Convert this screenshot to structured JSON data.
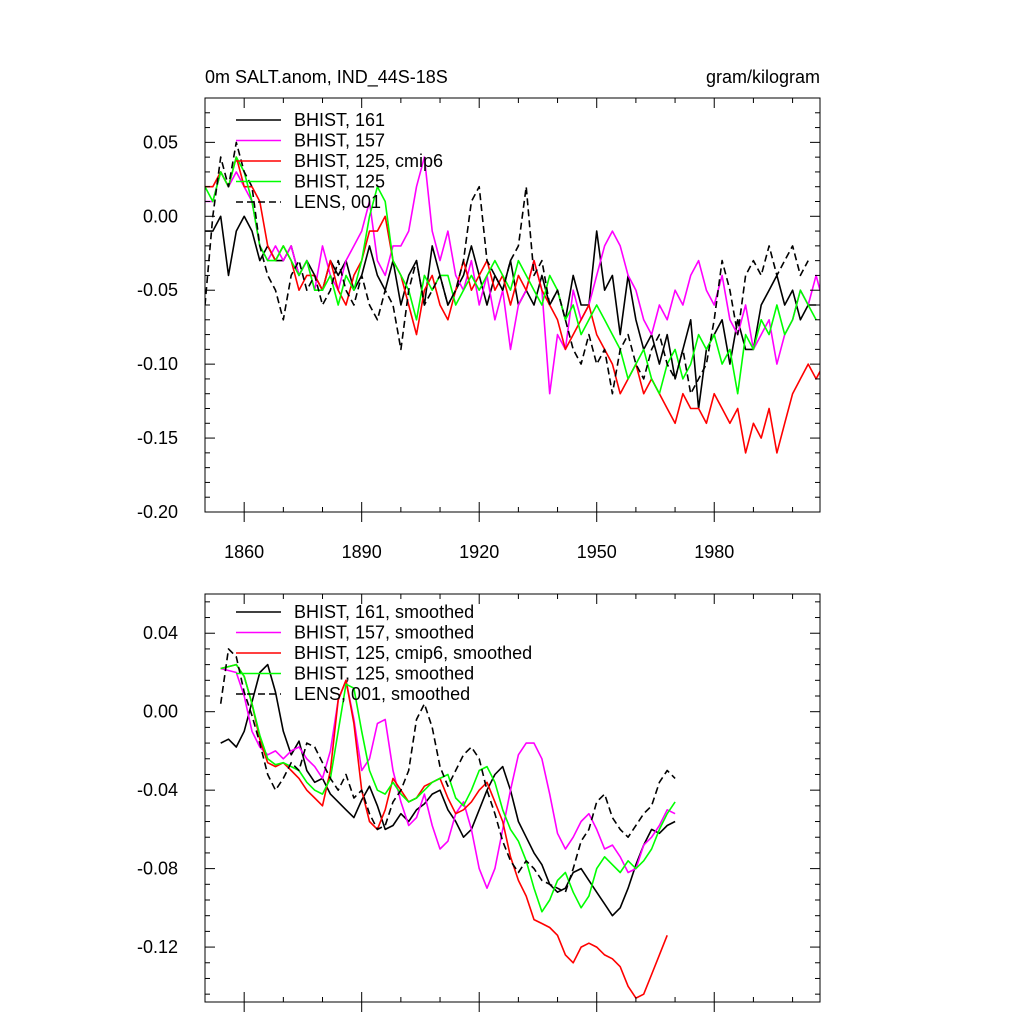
{
  "chart_data": [
    {
      "type": "line",
      "title": "0m SALT.anom, IND_44S-18S",
      "units": "gram/kilogram",
      "xlabel": "",
      "ylabel": "",
      "xlim": [
        1850,
        2007
      ],
      "ylim": [
        -0.2,
        0.08
      ],
      "yticks": [
        0.05,
        0.0,
        -0.05,
        -0.1,
        -0.15,
        -0.2
      ],
      "ytick_labels": [
        "0.05",
        "0.00",
        "-0.05",
        "-0.10",
        "-0.15",
        "-0.20"
      ],
      "xticks": [
        1860,
        1890,
        1920,
        1950,
        1980
      ],
      "xtick_labels": [
        "1860",
        "1890",
        "1920",
        "1950",
        "1980"
      ],
      "x_start": 1850,
      "x_step": 2,
      "legend_position": "top-left",
      "series": [
        {
          "name": "BHIST, 161",
          "color": "#000000",
          "dash": "solid",
          "values": [
            -0.01,
            -0.01,
            0.0,
            -0.04,
            -0.01,
            0.0,
            -0.01,
            -0.03,
            -0.02,
            -0.03,
            -0.03,
            -0.02,
            -0.04,
            -0.03,
            -0.04,
            -0.05,
            -0.03,
            -0.04,
            -0.03,
            -0.05,
            -0.04,
            -0.02,
            -0.04,
            -0.05,
            -0.03,
            -0.06,
            -0.04,
            -0.03,
            -0.06,
            -0.02,
            -0.04,
            -0.06,
            -0.05,
            -0.04,
            -0.02,
            -0.04,
            -0.06,
            -0.04,
            -0.05,
            -0.03,
            -0.06,
            -0.05,
            -0.06,
            -0.04,
            -0.06,
            -0.05,
            -0.07,
            -0.04,
            -0.06,
            -0.06,
            -0.01,
            -0.05,
            -0.04,
            -0.08,
            -0.04,
            -0.07,
            -0.09,
            -0.08,
            -0.1,
            -0.08,
            -0.11,
            -0.09,
            -0.07,
            -0.13,
            -0.09,
            -0.08,
            -0.07,
            -0.1,
            -0.07,
            -0.09,
            -0.09,
            -0.06,
            -0.05,
            -0.04,
            -0.06,
            -0.05,
            -0.07,
            -0.06,
            -0.06
          ]
        },
        {
          "name": "BHIST, 157",
          "color": "#ff00ff",
          "dash": "solid",
          "values": [
            0.01,
            0.01,
            0.03,
            0.02,
            0.03,
            0.02,
            0.01,
            -0.02,
            -0.03,
            -0.02,
            -0.03,
            -0.02,
            -0.04,
            -0.03,
            -0.05,
            -0.02,
            -0.04,
            -0.05,
            -0.03,
            -0.02,
            -0.01,
            0.01,
            -0.03,
            -0.04,
            -0.02,
            -0.02,
            -0.01,
            0.02,
            0.04,
            -0.01,
            -0.03,
            -0.01,
            -0.04,
            -0.05,
            -0.03,
            -0.06,
            -0.04,
            -0.07,
            -0.05,
            -0.09,
            -0.06,
            -0.05,
            -0.03,
            -0.05,
            -0.12,
            -0.08,
            -0.09,
            -0.05,
            -0.07,
            -0.06,
            -0.04,
            -0.02,
            -0.01,
            -0.02,
            -0.04,
            -0.05,
            -0.07,
            -0.08,
            -0.06,
            -0.07,
            -0.05,
            -0.06,
            -0.04,
            -0.03,
            -0.05,
            -0.06,
            -0.04,
            -0.07,
            -0.08,
            -0.06,
            -0.09,
            -0.08,
            -0.07,
            -0.1,
            -0.08,
            -0.07,
            -0.05,
            -0.06,
            -0.04,
            -0.06
          ]
        },
        {
          "name": "BHIST, 125, cmip6",
          "color": "#ff0000",
          "dash": "solid",
          "values": [
            0.02,
            0.02,
            0.03,
            0.02,
            0.04,
            0.02,
            0.02,
            0.01,
            -0.02,
            -0.03,
            -0.02,
            -0.03,
            -0.05,
            -0.04,
            -0.04,
            -0.05,
            -0.03,
            -0.05,
            -0.06,
            -0.04,
            -0.03,
            -0.01,
            -0.01,
            0.0,
            -0.03,
            -0.04,
            -0.06,
            -0.08,
            -0.05,
            -0.04,
            -0.06,
            -0.07,
            -0.05,
            -0.03,
            -0.05,
            -0.04,
            -0.03,
            -0.05,
            -0.04,
            -0.06,
            -0.04,
            -0.05,
            -0.03,
            -0.05,
            -0.06,
            -0.07,
            -0.09,
            -0.08,
            -0.07,
            -0.06,
            -0.08,
            -0.09,
            -0.1,
            -0.12,
            -0.11,
            -0.1,
            -0.12,
            -0.11,
            -0.12,
            -0.13,
            -0.14,
            -0.12,
            -0.13,
            -0.13,
            -0.14,
            -0.12,
            -0.13,
            -0.14,
            -0.13,
            -0.16,
            -0.14,
            -0.15,
            -0.13,
            -0.16,
            -0.14,
            -0.12,
            -0.11,
            -0.1,
            -0.11,
            -0.1
          ]
        },
        {
          "name": "BHIST, 125",
          "color": "#00ff00",
          "dash": "solid",
          "values": [
            0.02,
            0.01,
            0.03,
            0.02,
            0.04,
            0.03,
            0.01,
            -0.02,
            -0.03,
            -0.03,
            -0.02,
            -0.03,
            -0.04,
            -0.03,
            -0.05,
            -0.05,
            -0.04,
            -0.06,
            -0.04,
            -0.05,
            -0.03,
            0.0,
            0.02,
            0.01,
            -0.03,
            -0.04,
            -0.05,
            -0.07,
            -0.04,
            -0.05,
            -0.04,
            -0.04,
            -0.06,
            -0.05,
            -0.04,
            -0.05,
            -0.04,
            -0.03,
            -0.04,
            -0.05,
            -0.03,
            -0.04,
            -0.05,
            -0.06,
            -0.04,
            -0.05,
            -0.07,
            -0.06,
            -0.08,
            -0.07,
            -0.06,
            -0.07,
            -0.08,
            -0.09,
            -0.11,
            -0.1,
            -0.09,
            -0.11,
            -0.12,
            -0.1,
            -0.09,
            -0.11,
            -0.1,
            -0.08,
            -0.09,
            -0.08,
            -0.1,
            -0.09,
            -0.12,
            -0.08,
            -0.09,
            -0.07,
            -0.08,
            -0.06,
            -0.08,
            -0.07,
            -0.05,
            -0.06,
            -0.07
          ]
        },
        {
          "name": "LENS, 001",
          "color": "#000000",
          "dash": "dashed",
          "values": [
            -0.06,
            0.0,
            0.04,
            0.02,
            0.05,
            0.03,
            0.02,
            -0.02,
            -0.04,
            -0.05,
            -0.07,
            -0.04,
            -0.03,
            -0.05,
            -0.04,
            -0.06,
            -0.05,
            -0.03,
            -0.05,
            -0.06,
            -0.04,
            -0.06,
            -0.07,
            -0.05,
            -0.06,
            -0.09,
            -0.05,
            -0.03,
            -0.06,
            -0.05,
            -0.04,
            -0.06,
            -0.05,
            -0.03,
            0.01,
            0.02,
            -0.03,
            -0.04,
            -0.05,
            -0.03,
            -0.02,
            0.02,
            -0.04,
            -0.03,
            -0.06,
            -0.05,
            -0.07,
            -0.09,
            -0.1,
            -0.08,
            -0.1,
            -0.09,
            -0.12,
            -0.09,
            -0.08,
            -0.1,
            -0.11,
            -0.09,
            -0.08,
            -0.1,
            -0.11,
            -0.09,
            -0.12,
            -0.11,
            -0.1,
            -0.07,
            -0.03,
            -0.05,
            -0.08,
            -0.04,
            -0.03,
            -0.04,
            -0.02,
            -0.04,
            -0.03,
            -0.02,
            -0.04,
            -0.03
          ]
        }
      ]
    },
    {
      "type": "line",
      "title": "",
      "xlabel": "",
      "ylabel": "",
      "xlim": [
        1850,
        2007
      ],
      "ylim": [
        -0.148,
        0.06
      ],
      "yticks": [
        0.04,
        0.0,
        -0.04,
        -0.08,
        -0.12
      ],
      "ytick_labels": [
        "0.04",
        "0.00",
        "-0.04",
        "-0.08",
        "-0.12"
      ],
      "xticks": [
        1860,
        1890,
        1920,
        1950,
        1980
      ],
      "x_start": 1854,
      "x_step": 2,
      "legend_position": "top-left",
      "series": [
        {
          "name": "BHIST, 161, smoothed",
          "color": "#000000",
          "dash": "solid",
          "values": [
            -0.016,
            -0.014,
            -0.018,
            -0.01,
            0.005,
            0.02,
            0.024,
            0.01,
            -0.01,
            -0.022,
            -0.015,
            -0.03,
            -0.036,
            -0.034,
            -0.042,
            -0.046,
            -0.05,
            -0.054,
            -0.045,
            -0.038,
            -0.048,
            -0.06,
            -0.058,
            -0.052,
            -0.056,
            -0.05,
            -0.047,
            -0.042,
            -0.04,
            -0.05,
            -0.056,
            -0.064,
            -0.06,
            -0.05,
            -0.04,
            -0.032,
            -0.028,
            -0.04,
            -0.056,
            -0.064,
            -0.072,
            -0.078,
            -0.088,
            -0.092,
            -0.09,
            -0.082,
            -0.08,
            -0.086,
            -0.092,
            -0.098,
            -0.104,
            -0.1,
            -0.09,
            -0.078,
            -0.068,
            -0.06,
            -0.062,
            -0.058,
            -0.056
          ]
        },
        {
          "name": "BHIST, 157, smoothed",
          "color": "#ff00ff",
          "dash": "solid",
          "values": [
            0.022,
            0.021,
            0.02,
            0.008,
            -0.01,
            -0.018,
            -0.022,
            -0.02,
            -0.024,
            -0.02,
            -0.018,
            -0.024,
            -0.028,
            -0.034,
            -0.02,
            0.006,
            0.016,
            -0.004,
            -0.03,
            -0.024,
            -0.006,
            -0.004,
            -0.03,
            -0.046,
            -0.058,
            -0.054,
            -0.042,
            -0.058,
            -0.07,
            -0.066,
            -0.052,
            -0.046,
            -0.06,
            -0.08,
            -0.09,
            -0.08,
            -0.06,
            -0.04,
            -0.022,
            -0.016,
            -0.016,
            -0.024,
            -0.042,
            -0.062,
            -0.07,
            -0.064,
            -0.056,
            -0.052,
            -0.06,
            -0.07,
            -0.068,
            -0.074,
            -0.082,
            -0.08,
            -0.068,
            -0.064,
            -0.058,
            -0.05,
            -0.052
          ]
        },
        {
          "name": "BHIST, 125, cmip6, smoothed",
          "color": "#ff0000",
          "dash": "solid",
          "values": [
            0.022,
            0.023,
            0.024,
            0.018,
            0.004,
            -0.014,
            -0.026,
            -0.028,
            -0.026,
            -0.03,
            -0.034,
            -0.04,
            -0.044,
            -0.048,
            -0.03,
            0.006,
            0.016,
            -0.006,
            -0.04,
            -0.056,
            -0.06,
            -0.05,
            -0.034,
            -0.04,
            -0.046,
            -0.044,
            -0.038,
            -0.036,
            -0.034,
            -0.044,
            -0.052,
            -0.05,
            -0.046,
            -0.04,
            -0.036,
            -0.046,
            -0.056,
            -0.074,
            -0.086,
            -0.094,
            -0.106,
            -0.108,
            -0.11,
            -0.114,
            -0.124,
            -0.128,
            -0.12,
            -0.118,
            -0.12,
            -0.124,
            -0.126,
            -0.13,
            -0.14,
            -0.146,
            -0.144,
            -0.134,
            -0.124,
            -0.114
          ]
        },
        {
          "name": "BHIST, 125, smoothed",
          "color": "#00ff00",
          "dash": "solid",
          "values": [
            0.022,
            0.023,
            0.024,
            0.018,
            0.004,
            -0.012,
            -0.024,
            -0.027,
            -0.026,
            -0.028,
            -0.03,
            -0.036,
            -0.04,
            -0.042,
            -0.034,
            -0.01,
            0.014,
            0.012,
            -0.01,
            -0.03,
            -0.04,
            -0.042,
            -0.036,
            -0.042,
            -0.046,
            -0.044,
            -0.04,
            -0.036,
            -0.034,
            -0.032,
            -0.044,
            -0.048,
            -0.04,
            -0.03,
            -0.028,
            -0.036,
            -0.05,
            -0.06,
            -0.066,
            -0.076,
            -0.09,
            -0.102,
            -0.096,
            -0.086,
            -0.082,
            -0.092,
            -0.1,
            -0.094,
            -0.08,
            -0.074,
            -0.078,
            -0.082,
            -0.076,
            -0.08,
            -0.076,
            -0.07,
            -0.06,
            -0.052,
            -0.046
          ]
        },
        {
          "name": "LENS, 001, smoothed",
          "color": "#000000",
          "dash": "dashed",
          "values": [
            0.004,
            0.032,
            0.028,
            0.01,
            -0.002,
            -0.016,
            -0.032,
            -0.04,
            -0.034,
            -0.026,
            -0.03,
            -0.016,
            -0.018,
            -0.026,
            -0.034,
            -0.04,
            -0.032,
            -0.044,
            -0.04,
            -0.052,
            -0.06,
            -0.058,
            -0.046,
            -0.04,
            -0.03,
            -0.004,
            0.004,
            -0.008,
            -0.028,
            -0.038,
            -0.03,
            -0.022,
            -0.018,
            -0.024,
            -0.04,
            -0.052,
            -0.066,
            -0.076,
            -0.082,
            -0.076,
            -0.08,
            -0.086,
            -0.088,
            -0.09,
            -0.092,
            -0.08,
            -0.066,
            -0.06,
            -0.046,
            -0.042,
            -0.054,
            -0.06,
            -0.064,
            -0.058,
            -0.052,
            -0.048,
            -0.036,
            -0.03,
            -0.034
          ]
        }
      ]
    }
  ]
}
